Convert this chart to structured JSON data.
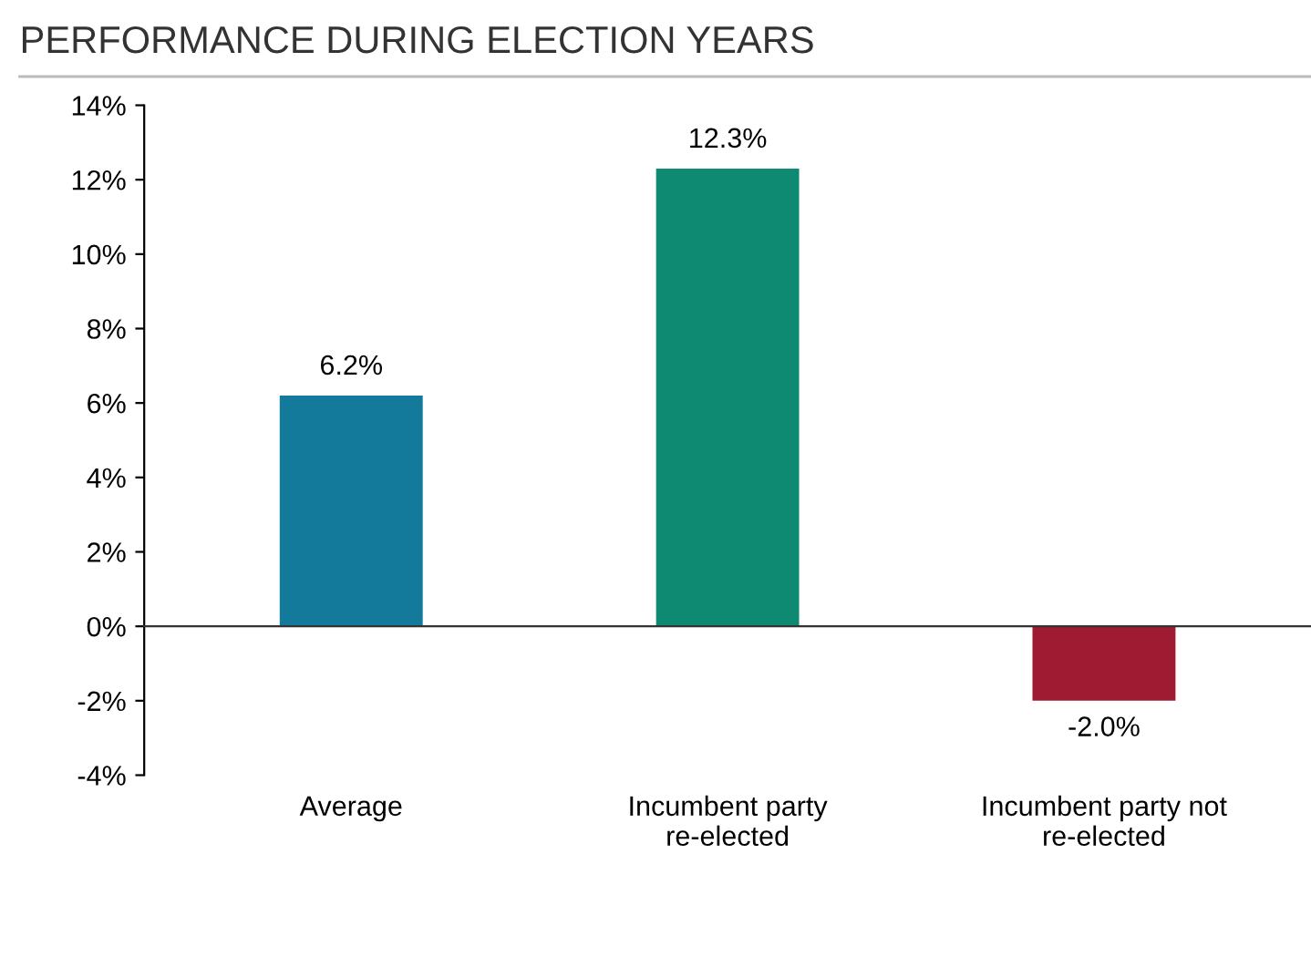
{
  "chart_data": {
    "type": "bar",
    "title": "PERFORMANCE DURING ELECTION YEARS",
    "categories": [
      "Average",
      "Incumbent party\nre-elected",
      "Incumbent party not\nre-elected"
    ],
    "values": [
      6.2,
      12.3,
      -2.0
    ],
    "colors": [
      "#137a9c",
      "#0e8a72",
      "#9e1b32"
    ],
    "value_labels": [
      "6.2%",
      "12.3%",
      "-2.0%"
    ],
    "ylim": [
      -4,
      14
    ],
    "yticks": [
      {
        "value": -4,
        "label": "-4%"
      },
      {
        "value": -2,
        "label": "-2%"
      },
      {
        "value": 0,
        "label": "0%"
      },
      {
        "value": 2,
        "label": "2%"
      },
      {
        "value": 4,
        "label": "4%"
      },
      {
        "value": 6,
        "label": "6%"
      },
      {
        "value": 8,
        "label": "8%"
      },
      {
        "value": 10,
        "label": "10%"
      },
      {
        "value": 12,
        "label": "12%"
      },
      {
        "value": 14,
        "label": "14%"
      }
    ],
    "legend": false
  }
}
